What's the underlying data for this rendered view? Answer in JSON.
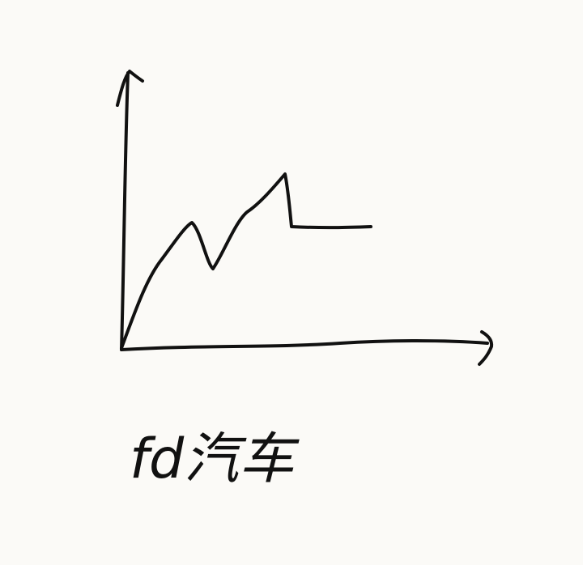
{
  "caption": "fd汽车"
}
